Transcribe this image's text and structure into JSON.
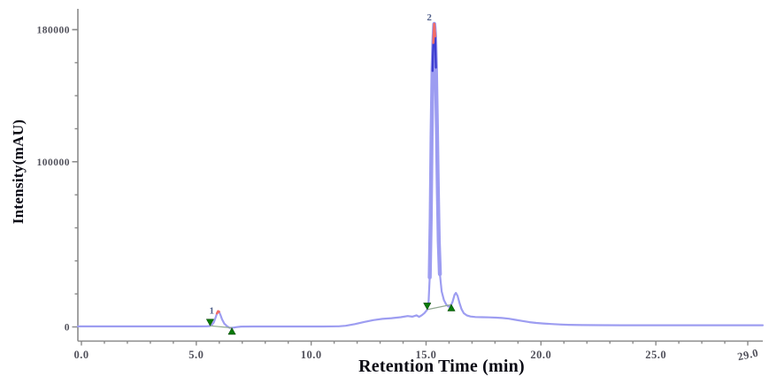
{
  "chart_data": {
    "type": "line",
    "title": "",
    "xlabel": "Retention Time (min)",
    "ylabel": "Intensity(mAU)",
    "x_axis": {
      "min": 0.0,
      "max": 29.0,
      "minor_tick_step": 1.0,
      "major_ticks": [
        0.0,
        5.0,
        10.0,
        15.0,
        20.0,
        25.0,
        29.0
      ],
      "tick_labels": [
        "0.0",
        "5.0",
        "10.0",
        "15.0",
        "20.0",
        "25.0",
        "29.0"
      ],
      "last_label_rotation_deg": -12
    },
    "y_axis": {
      "min": 0,
      "max": 180000,
      "minor_tick_step": 20000,
      "labeled_ticks": [
        {
          "value": 0,
          "label": "0"
        },
        {
          "value": 100000,
          "label": "100000"
        },
        {
          "value": 180000,
          "label": "180000"
        }
      ]
    },
    "grid": false,
    "legend": "none",
    "colors": {
      "trace": "#9d9df1",
      "peak_core": "#3d3dd0",
      "apex_highlight": "#f26b66",
      "peak_marker_green": "#0a7a0a",
      "integration_baseline": "#90a890",
      "axis": "#8a8a8a",
      "tick_label": "#52525c",
      "peak_number_label": "#4f5f8a"
    },
    "series": [
      {
        "name": "chromatogram-trace",
        "points": [
          [
            -0.15,
            300
          ],
          [
            1,
            300
          ],
          [
            2,
            300
          ],
          [
            3,
            300
          ],
          [
            4,
            300
          ],
          [
            5,
            300
          ],
          [
            5.45,
            350
          ],
          [
            5.58,
            550
          ],
          [
            5.68,
            1300
          ],
          [
            5.76,
            2800
          ],
          [
            5.84,
            5600
          ],
          [
            5.9,
            8200
          ],
          [
            5.95,
            9500
          ],
          [
            5.99,
            9200
          ],
          [
            6.05,
            7300
          ],
          [
            6.12,
            4600
          ],
          [
            6.22,
            2000
          ],
          [
            6.33,
            500
          ],
          [
            6.45,
            -600
          ],
          [
            6.58,
            -500
          ],
          [
            6.75,
            -100
          ],
          [
            6.95,
            200
          ],
          [
            7.5,
            250
          ],
          [
            8.5,
            250
          ],
          [
            9.5,
            250
          ],
          [
            10.5,
            250
          ],
          [
            11.2,
            350
          ],
          [
            11.5,
            700
          ],
          [
            11.9,
            1700
          ],
          [
            12.3,
            3000
          ],
          [
            12.7,
            4100
          ],
          [
            13.1,
            4900
          ],
          [
            13.5,
            5300
          ],
          [
            13.9,
            5900
          ],
          [
            14.2,
            6600
          ],
          [
            14.4,
            6200
          ],
          [
            14.58,
            7000
          ],
          [
            14.7,
            6100
          ],
          [
            14.82,
            7100
          ],
          [
            14.93,
            8400
          ],
          [
            15.05,
            10500
          ],
          [
            15.11,
            15000
          ],
          [
            15.16,
            30000
          ],
          [
            15.2,
            65000
          ],
          [
            15.24,
            115000
          ],
          [
            15.28,
            155000
          ],
          [
            15.315,
            172000
          ],
          [
            15.355,
            183500
          ],
          [
            15.395,
            176000
          ],
          [
            15.43,
            157000
          ],
          [
            15.47,
            122000
          ],
          [
            15.51,
            85000
          ],
          [
            15.55,
            52000
          ],
          [
            15.6,
            32000
          ],
          [
            15.68,
            21500
          ],
          [
            15.78,
            16200
          ],
          [
            15.88,
            13500
          ],
          [
            15.98,
            12300
          ],
          [
            16.06,
            12600
          ],
          [
            16.15,
            15000
          ],
          [
            16.24,
            19500
          ],
          [
            16.3,
            20600
          ],
          [
            16.37,
            18800
          ],
          [
            16.45,
            14800
          ],
          [
            16.54,
            10800
          ],
          [
            16.64,
            8300
          ],
          [
            16.77,
            7000
          ],
          [
            16.93,
            6300
          ],
          [
            17.15,
            6000
          ],
          [
            17.45,
            5900
          ],
          [
            17.75,
            5800
          ],
          [
            18.05,
            5600
          ],
          [
            18.3,
            5400
          ],
          [
            18.6,
            5000
          ],
          [
            18.9,
            4300
          ],
          [
            19.2,
            3600
          ],
          [
            19.5,
            2900
          ],
          [
            19.8,
            2400
          ],
          [
            20.1,
            2100
          ],
          [
            20.45,
            1750
          ],
          [
            20.8,
            1500
          ],
          [
            21.2,
            1300
          ],
          [
            21.8,
            1150
          ],
          [
            22.5,
            1050
          ],
          [
            23.5,
            1000
          ],
          [
            24.5,
            1000
          ],
          [
            25.5,
            1000
          ],
          [
            26.5,
            1000
          ],
          [
            27.5,
            1000
          ],
          [
            28.5,
            1000
          ],
          [
            29.65,
            1000
          ]
        ]
      }
    ],
    "peaks": [
      {
        "number": "1",
        "retention_time": 5.95,
        "apex_intensity": 9500,
        "label_pos": [
          5.67,
          8000
        ],
        "apex_t_range": [
          5.86,
          6.01
        ],
        "start_marker_t": 5.6,
        "end_marker_t": 6.55,
        "baseline": [
          [
            5.6,
            700
          ],
          [
            6.55,
            -550
          ]
        ]
      },
      {
        "number": "2",
        "retention_time": 15.355,
        "apex_intensity": 183500,
        "label_pos": [
          15.14,
          185500
        ],
        "apex_t_range": [
          15.3,
          15.41
        ],
        "core_t_range": [
          15.26,
          15.45
        ],
        "thick_t_range": [
          15.13,
          15.62
        ],
        "start_marker_t": 15.05,
        "end_marker_t": 16.1,
        "baseline": [
          [
            15.05,
            10500
          ],
          [
            16.1,
            13500
          ]
        ]
      }
    ]
  }
}
